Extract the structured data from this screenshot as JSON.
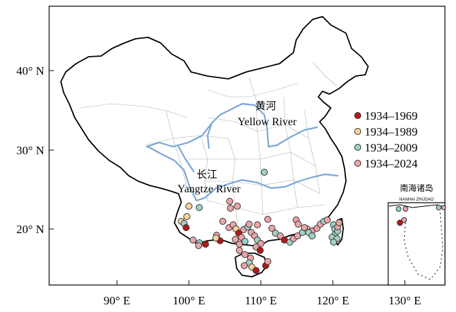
{
  "map": {
    "x_axis": {
      "unit": "° E",
      "ticks": [
        {
          "value": 90,
          "label": "90° E"
        },
        {
          "value": 100,
          "label": "100° E"
        },
        {
          "value": 110,
          "label": "110° E"
        },
        {
          "value": 120,
          "label": "120° E"
        },
        {
          "value": 130,
          "label": "130° E"
        }
      ]
    },
    "y_axis": {
      "unit": "° N",
      "ticks": [
        {
          "value": 40,
          "label": "40° N"
        },
        {
          "value": 30,
          "label": "30° N"
        },
        {
          "value": 20,
          "label": "20° N"
        }
      ]
    },
    "rivers": {
      "yellow": {
        "chinese": "黄河",
        "english": "Yellow River"
      },
      "yangtze": {
        "chinese": "长江",
        "english": "Yangtze River"
      }
    },
    "inset": {
      "title": "南海诸岛",
      "subtitle": "NANHAI ZHUDAO"
    },
    "legend": [
      {
        "label": "1934–1969",
        "color": "#b2181b"
      },
      {
        "label": "1934–1989",
        "color": "#f6d49a"
      },
      {
        "label": "1934–2009",
        "color": "#9fd0c6"
      },
      {
        "label": "1934–2024",
        "color": "#eaa5a8"
      }
    ],
    "colors": {
      "border": "#000000",
      "province_lines": "#b0b0b0",
      "rivers": "#7aa6d6"
    }
  }
}
